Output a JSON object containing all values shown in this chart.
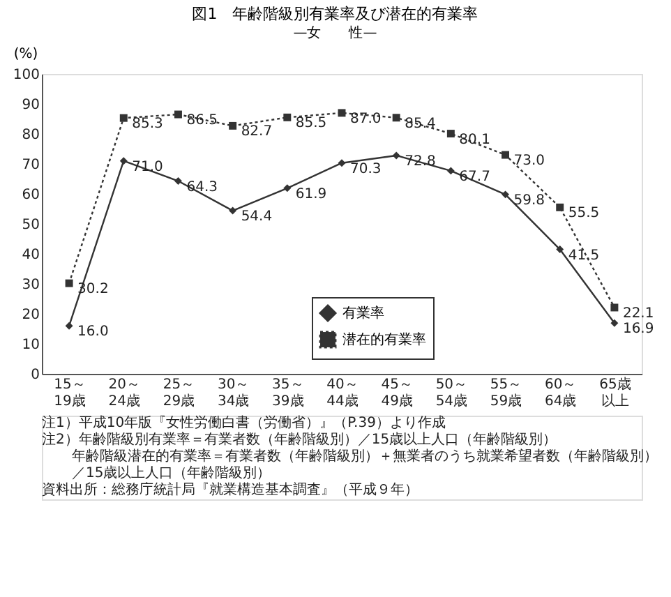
{
  "chart_data": {
    "type": "line",
    "title": "図1　年齢階級別有業率及び潜在的有業率",
    "subtitle": "—女　　性—",
    "ylabel": "(%)",
    "categories": [
      "15～19歳",
      "20～24歳",
      "25～29歳",
      "30～34歳",
      "35～39歳",
      "40～44歳",
      "45～49歳",
      "50～54歳",
      "55～59歳",
      "60～64歳",
      "65歳以上"
    ],
    "series": [
      {
        "name": "有業率",
        "color": "#333333",
        "marker": "diamond",
        "line_style": "solid",
        "values": [
          16.0,
          71.0,
          64.3,
          54.4,
          61.9,
          70.3,
          72.8,
          67.7,
          59.8,
          41.5,
          16.9
        ],
        "value_labels": [
          "16.0",
          "71.0",
          "64.3",
          "54.4",
          "61.9",
          "70.3",
          "72.8",
          "67.7",
          "59.8",
          "41.5",
          "16.9"
        ]
      },
      {
        "name": "潜在的有業率",
        "color": "#333333",
        "marker": "square",
        "line_style": "dotted",
        "values": [
          30.2,
          85.3,
          86.5,
          82.7,
          85.5,
          87.0,
          85.4,
          80.1,
          73.0,
          55.5,
          22.1
        ],
        "value_labels": [
          "30.2",
          "85.3",
          "86.5",
          "82.7",
          "85.5",
          "87.0",
          "85.4",
          "80.1",
          "73.0",
          "55.5",
          "22.1"
        ]
      }
    ],
    "ylim": [
      0,
      100
    ],
    "yticks": [
      0,
      10,
      20,
      30,
      40,
      50,
      60,
      70,
      80,
      90,
      100
    ],
    "grid": false,
    "legend": "bottom",
    "annotations": [
      "注1）平成10年版『女性労働白書（労働省）』（P.39）より作成",
      "注2）年齢階級別有業率＝有業者数（年齢階級別）／15歳以上人口（年齢階級別）",
      "年齢階級潜在的有業率＝有業者数（年齢階級別）＋無業者のうち就業希望者数（年齢階級別）／15歳以上人口（年齢階級別）",
      "資料出所：総務庁統計局『就業構造基本調査』（平成９年）"
    ]
  }
}
